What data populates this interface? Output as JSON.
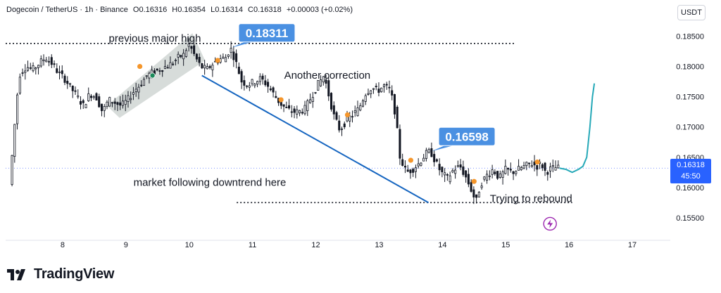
{
  "header": {
    "symbol": "Dogecoin / TetherUS · 1h · Binance",
    "open": "O0.16316",
    "high": "H0.16354",
    "low": "L0.16314",
    "close": "C0.16318",
    "change": "+0.00003 (+0.02%)"
  },
  "unit_badge": "USDT",
  "last_price": {
    "value": "0.16318",
    "countdown": "45:50",
    "color": "#2962ff"
  },
  "brand": {
    "name": "TradingView"
  },
  "colors": {
    "candle": "#131722",
    "trend": "#1565c0",
    "projection": "#26a9b8",
    "dot": "#f5962b",
    "callout": "#4a90e2",
    "channel": "#b7c0bb",
    "lightning": "#9c27b0"
  },
  "chart_data": {
    "type": "candlestick",
    "x_ticks": [
      "8",
      "9",
      "10",
      "11",
      "12",
      "13",
      "14",
      "15",
      "16",
      "17"
    ],
    "x_tick_values": [
      8,
      9,
      10,
      11,
      12,
      13,
      14,
      15,
      16,
      17
    ],
    "xlim": [
      7.1,
      17.6
    ],
    "y_ticks": [
      "0.18500",
      "0.18000",
      "0.17500",
      "0.17000",
      "0.16500",
      "0.16000",
      "0.15500"
    ],
    "y_tick_values": [
      0.185,
      0.18,
      0.175,
      0.17,
      0.165,
      0.16,
      0.155
    ],
    "ylim": [
      0.1515,
      0.1875
    ],
    "close_path": [
      [
        7.18,
        0.1605
      ],
      [
        7.22,
        0.165
      ],
      [
        7.26,
        0.17
      ],
      [
        7.3,
        0.175
      ],
      [
        7.35,
        0.179
      ],
      [
        7.45,
        0.18
      ],
      [
        7.55,
        0.1795
      ],
      [
        7.65,
        0.1805
      ],
      [
        7.75,
        0.1815
      ],
      [
        7.85,
        0.1805
      ],
      [
        7.95,
        0.179
      ],
      [
        8.05,
        0.178
      ],
      [
        8.15,
        0.1765
      ],
      [
        8.25,
        0.175
      ],
      [
        8.35,
        0.1735
      ],
      [
        8.45,
        0.1755
      ],
      [
        8.55,
        0.175
      ],
      [
        8.65,
        0.1725
      ],
      [
        8.75,
        0.1745
      ],
      [
        8.85,
        0.174
      ],
      [
        8.95,
        0.1735
      ],
      [
        9.05,
        0.1745
      ],
      [
        9.15,
        0.176
      ],
      [
        9.25,
        0.177
      ],
      [
        9.35,
        0.1785
      ],
      [
        9.45,
        0.179
      ],
      [
        9.55,
        0.1795
      ],
      [
        9.65,
        0.18
      ],
      [
        9.75,
        0.1805
      ],
      [
        9.85,
        0.1815
      ],
      [
        9.95,
        0.182
      ],
      [
        10.0,
        0.1838
      ],
      [
        10.05,
        0.183
      ],
      [
        10.12,
        0.1815
      ],
      [
        10.2,
        0.18
      ],
      [
        10.3,
        0.1795
      ],
      [
        10.4,
        0.1805
      ],
      [
        10.5,
        0.1812
      ],
      [
        10.6,
        0.1815
      ],
      [
        10.67,
        0.1831
      ],
      [
        10.75,
        0.181
      ],
      [
        10.85,
        0.1775
      ],
      [
        10.95,
        0.177
      ],
      [
        11.05,
        0.1775
      ],
      [
        11.15,
        0.178
      ],
      [
        11.25,
        0.177
      ],
      [
        11.35,
        0.1755
      ],
      [
        11.45,
        0.174
      ],
      [
        11.55,
        0.173
      ],
      [
        11.65,
        0.1725
      ],
      [
        11.75,
        0.1725
      ],
      [
        11.85,
        0.173
      ],
      [
        11.95,
        0.175
      ],
      [
        12.05,
        0.177
      ],
      [
        12.15,
        0.1785
      ],
      [
        12.22,
        0.1755
      ],
      [
        12.3,
        0.172
      ],
      [
        12.4,
        0.1695
      ],
      [
        12.5,
        0.171
      ],
      [
        12.6,
        0.172
      ],
      [
        12.7,
        0.173
      ],
      [
        12.8,
        0.1755
      ],
      [
        12.9,
        0.1765
      ],
      [
        13.0,
        0.176
      ],
      [
        13.1,
        0.1768
      ],
      [
        13.2,
        0.176
      ],
      [
        13.28,
        0.172
      ],
      [
        13.35,
        0.165
      ],
      [
        13.45,
        0.1625
      ],
      [
        13.55,
        0.163
      ],
      [
        13.65,
        0.164
      ],
      [
        13.75,
        0.1655
      ],
      [
        13.83,
        0.166
      ],
      [
        13.9,
        0.1645
      ],
      [
        14.0,
        0.1625
      ],
      [
        14.1,
        0.1615
      ],
      [
        14.2,
        0.163
      ],
      [
        14.3,
        0.1635
      ],
      [
        14.4,
        0.1615
      ],
      [
        14.5,
        0.159
      ],
      [
        14.55,
        0.1575
      ],
      [
        14.62,
        0.1605
      ],
      [
        14.72,
        0.162
      ],
      [
        14.82,
        0.163
      ],
      [
        14.92,
        0.1615
      ],
      [
        15.02,
        0.163
      ],
      [
        15.12,
        0.1625
      ],
      [
        15.22,
        0.163
      ],
      [
        15.32,
        0.1635
      ],
      [
        15.42,
        0.164
      ],
      [
        15.52,
        0.1635
      ],
      [
        15.58,
        0.164
      ],
      [
        15.65,
        0.1625
      ],
      [
        15.72,
        0.163
      ],
      [
        15.8,
        0.1633
      ],
      [
        15.85,
        0.16318
      ]
    ],
    "projection_path": [
      [
        15.85,
        0.16318
      ],
      [
        15.95,
        0.163
      ],
      [
        16.05,
        0.1625
      ],
      [
        16.15,
        0.163
      ],
      [
        16.22,
        0.1635
      ],
      [
        16.28,
        0.165
      ],
      [
        16.33,
        0.17
      ],
      [
        16.37,
        0.175
      ],
      [
        16.4,
        0.1772
      ]
    ],
    "marker_dots": [
      [
        9.22,
        0.18
      ],
      [
        10.45,
        0.181
      ],
      [
        11.45,
        0.1745
      ],
      [
        12.5,
        0.172
      ],
      [
        13.5,
        0.1645
      ],
      [
        14.5,
        0.161
      ],
      [
        15.5,
        0.1642
      ]
    ],
    "green_dot": [
      9.42,
      0.1785
    ],
    "resistance_level": {
      "value": 0.1838,
      "from": 7.1,
      "to": 15.15
    },
    "support_level": {
      "value": 0.1575,
      "from": 10.75,
      "to": 16.05
    },
    "trendline": {
      "from": [
        10.2,
        0.1785
      ],
      "to": [
        13.78,
        0.1575
      ]
    },
    "channel": {
      "points": [
        [
          8.7,
          0.1735
        ],
        [
          10.05,
          0.1855
        ],
        [
          10.25,
          0.181
        ],
        [
          8.9,
          0.1715
        ]
      ]
    },
    "callouts": [
      {
        "text": "0.18311",
        "x": 10.67,
        "y": 0.18311
      },
      {
        "text": "0.16598",
        "x": 13.83,
        "y": 0.16598
      }
    ],
    "annotations": [
      {
        "text": "previous major high"
      },
      {
        "text": "Another correction"
      },
      {
        "text": "market following downtrend here"
      },
      {
        "text": "Trying to rebound"
      }
    ]
  }
}
